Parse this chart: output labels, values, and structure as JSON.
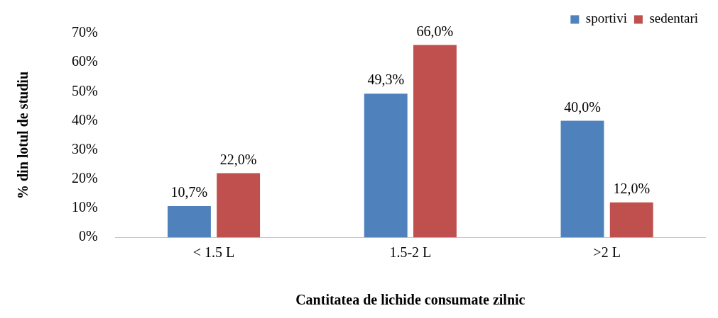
{
  "chart_data": {
    "type": "bar",
    "xlabel": "Cantitatea de lichide consumate zilnic",
    "ylabel": "% din lotul de studiu",
    "categories": [
      "< 1.5 L",
      "1.5-2 L",
      ">2 L"
    ],
    "series": [
      {
        "name": "sportivi",
        "color": "#4f81bd",
        "values": [
          10.7,
          49.3,
          40.0
        ],
        "value_labels": [
          "10,7%",
          "49,3%",
          "40,0%"
        ]
      },
      {
        "name": "sedentari",
        "color": "#c0504d",
        "values": [
          22.0,
          66.0,
          12.0
        ],
        "value_labels": [
          "22,0%",
          "66,0%",
          "12,0%"
        ]
      }
    ],
    "ylim": [
      0,
      70
    ],
    "yticks": [
      {
        "value": 0,
        "label": "0%"
      },
      {
        "value": 10,
        "label": "10%"
      },
      {
        "value": 20,
        "label": "20%"
      },
      {
        "value": 30,
        "label": "30%"
      },
      {
        "value": 40,
        "label": "40%"
      },
      {
        "value": 50,
        "label": "50%"
      },
      {
        "value": 60,
        "label": "60%"
      },
      {
        "value": 70,
        "label": "70%"
      }
    ],
    "legend": "top right"
  }
}
